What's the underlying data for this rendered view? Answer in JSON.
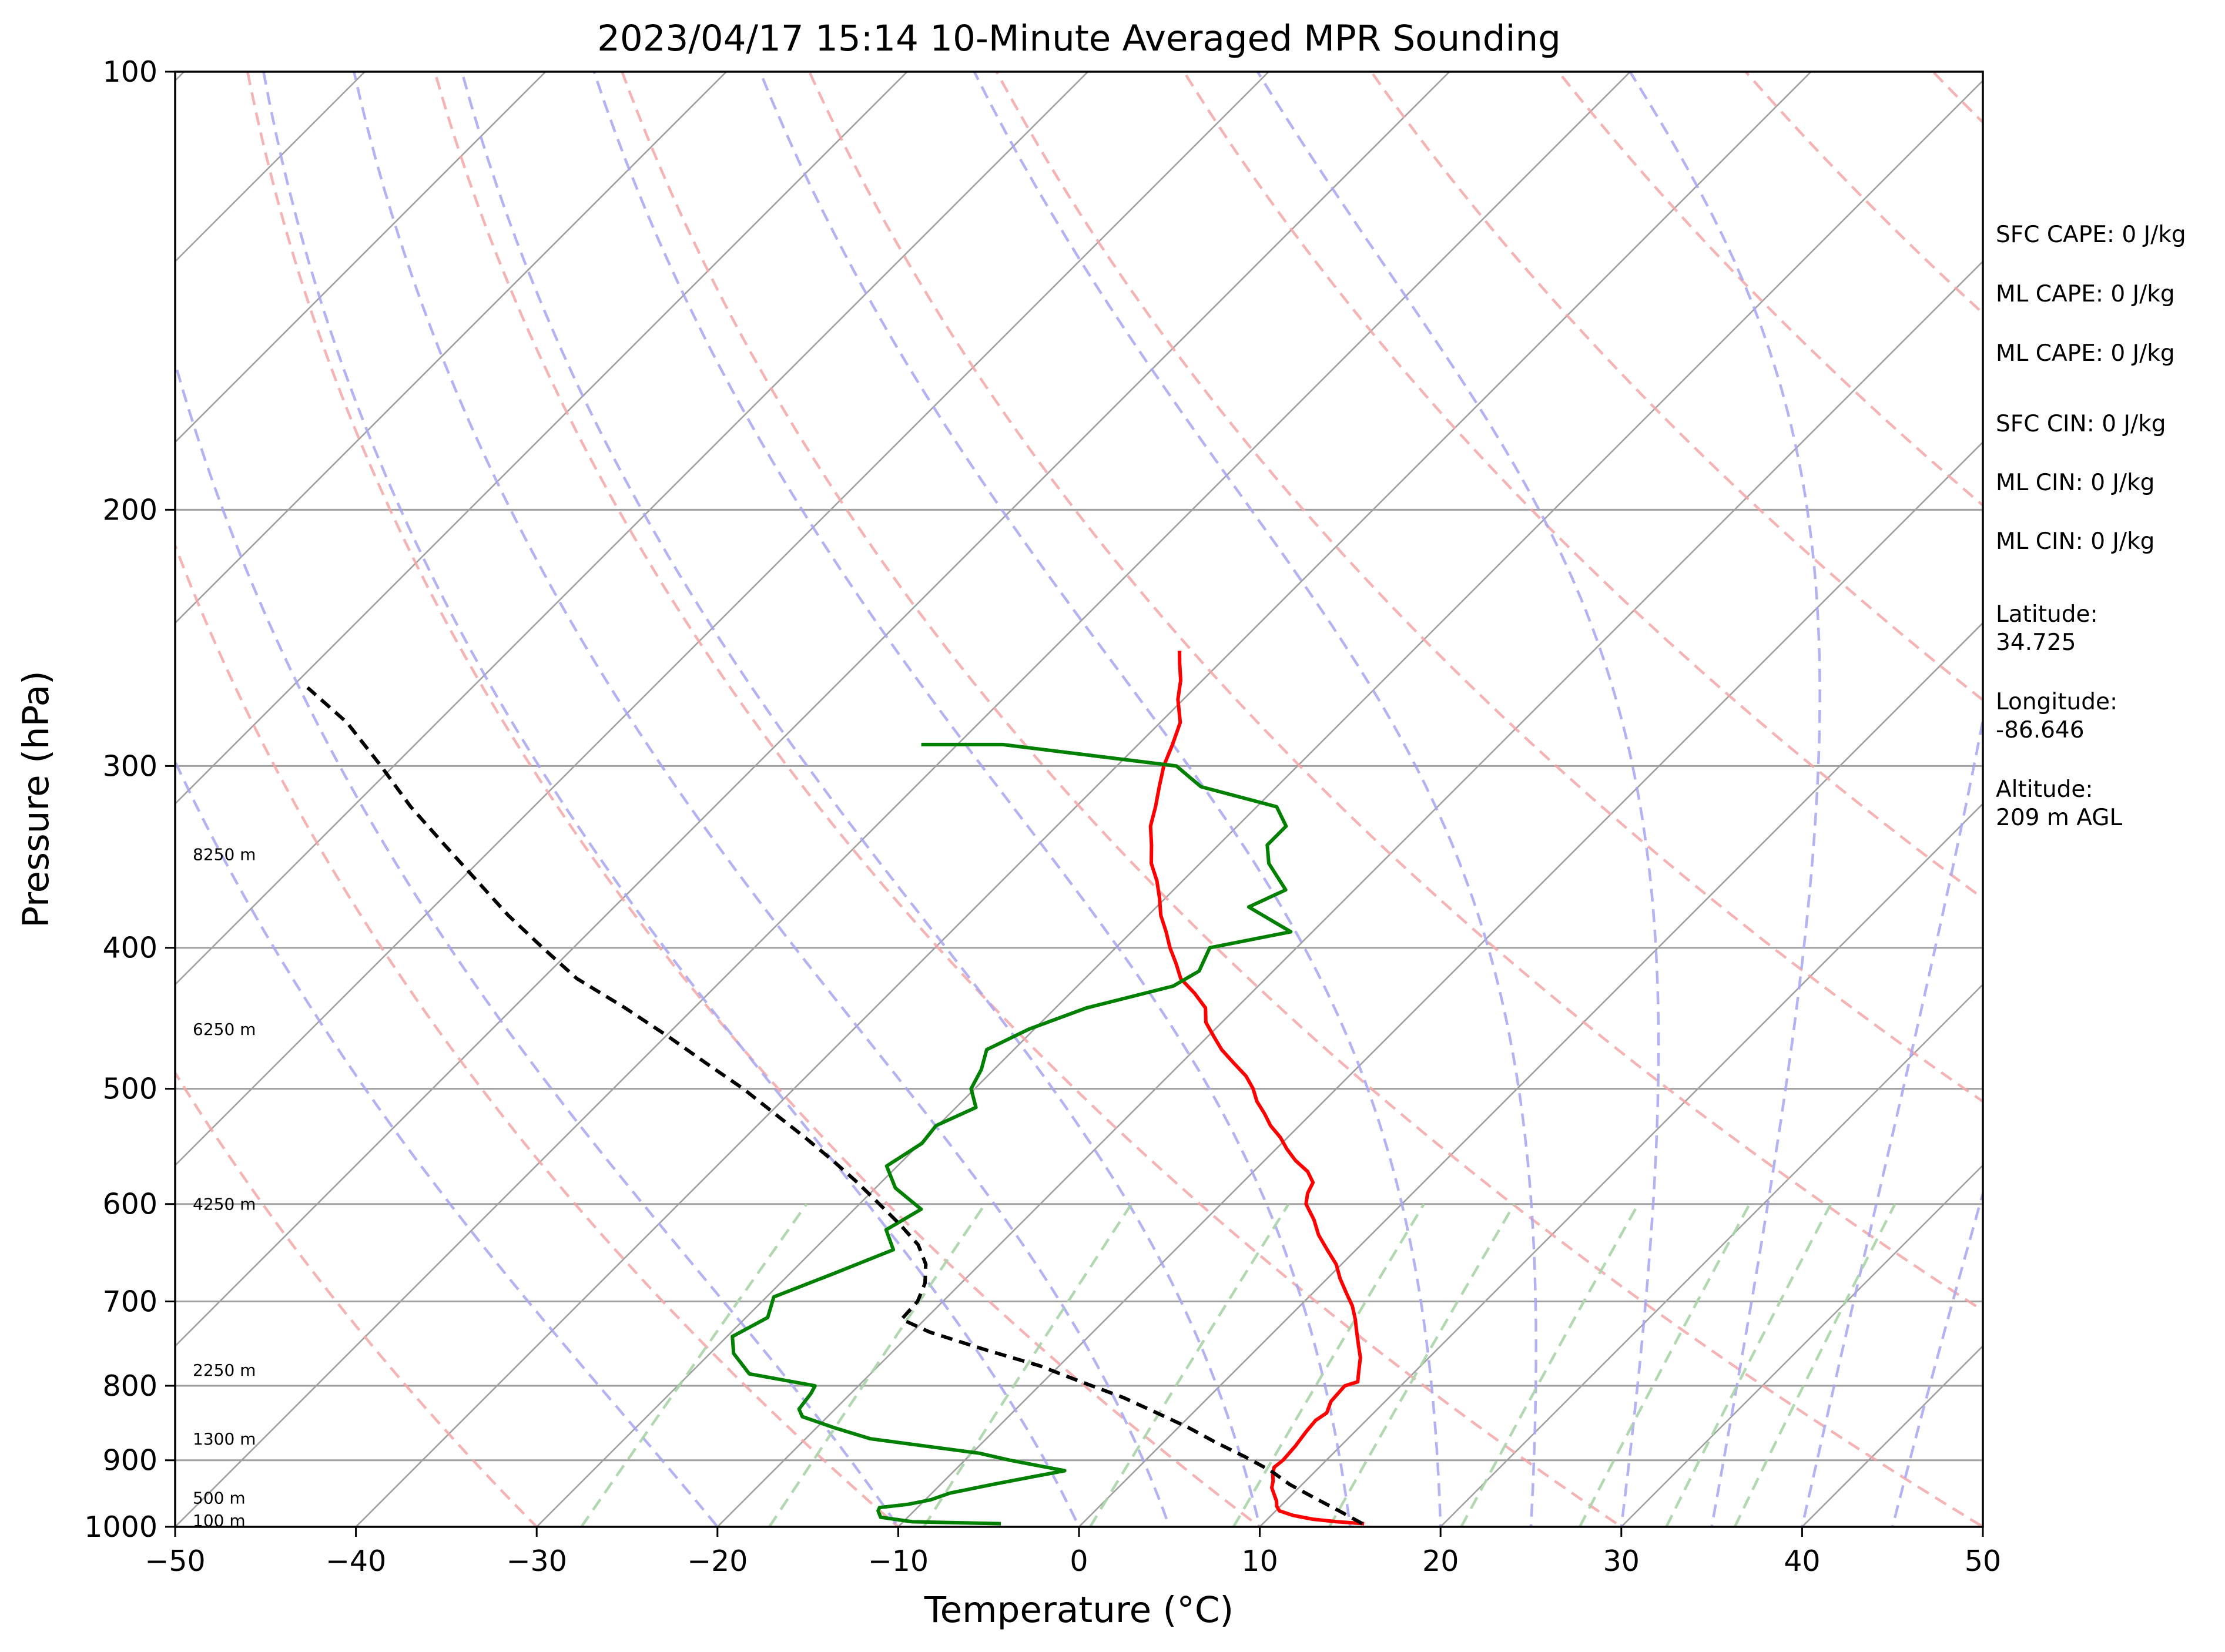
{
  "chart_data": {
    "type": "line",
    "title": "2023/04/17 15:14 10-Minute Averaged MPR Sounding",
    "xlabel": "Temperature (°C)",
    "ylabel": "Pressure (hPa)",
    "xlim": [
      -50,
      50
    ],
    "ylim": [
      1000,
      100
    ],
    "y_scale": "log",
    "x_ticks": [
      -50,
      -40,
      -30,
      -20,
      -10,
      0,
      10,
      20,
      30,
      40,
      50
    ],
    "x_tick_labels": [
      "−50",
      "−40",
      "−30",
      "−20",
      "−10",
      "0",
      "10",
      "20",
      "30",
      "40",
      "50"
    ],
    "y_ticks": [
      1000,
      900,
      800,
      700,
      600,
      500,
      400,
      300,
      200,
      100
    ],
    "y_tick_labels": [
      "1000",
      "900",
      "800",
      "700",
      "600",
      "500",
      "400",
      "300",
      "200",
      "100"
    ],
    "grid": true,
    "colors": {
      "temperature": "#ff0000",
      "dewpoint": "#008000",
      "parcel": "#000000",
      "isotherm": "#a0a0a0",
      "dry_adiabat": "#f4a6a6",
      "moist_adiabat": "#a6a6f2",
      "mixing_ratio": "#a8d4a8"
    },
    "series": [
      {
        "key": "temperature",
        "points": [
          [
            15.6,
            995
          ],
          [
            14,
            992
          ],
          [
            12.5,
            988
          ],
          [
            11.2,
            982
          ],
          [
            10.2,
            975
          ],
          [
            9.8,
            968
          ],
          [
            9.5,
            960
          ],
          [
            9.0,
            950
          ],
          [
            8.5,
            940
          ],
          [
            8.2,
            930
          ],
          [
            7.8,
            920
          ],
          [
            7.5,
            910
          ],
          [
            7.6,
            900
          ],
          [
            7.5,
            880
          ],
          [
            7.3,
            860
          ],
          [
            7.2,
            845
          ],
          [
            7.4,
            835
          ],
          [
            7.0,
            820
          ],
          [
            6.9,
            800
          ],
          [
            7.4,
            795
          ],
          [
            7.2,
            790
          ],
          [
            6.8,
            780
          ],
          [
            6.2,
            765
          ],
          [
            5.4,
            750
          ],
          [
            4.6,
            735
          ],
          [
            3.8,
            720
          ],
          [
            2.9,
            705
          ],
          [
            1.8,
            690
          ],
          [
            0.7,
            675
          ],
          [
            -0.3,
            660
          ],
          [
            -1.6,
            645
          ],
          [
            -2.9,
            630
          ],
          [
            -4.0,
            615
          ],
          [
            -5.3,
            600
          ],
          [
            -5.8,
            590
          ],
          [
            -6.1,
            580
          ],
          [
            -7.0,
            570
          ],
          [
            -8.3,
            560
          ],
          [
            -9.4,
            550
          ],
          [
            -10.4,
            540
          ],
          [
            -11.6,
            530
          ],
          [
            -12.6,
            520
          ],
          [
            -13.7,
            510
          ],
          [
            -14.6,
            500
          ],
          [
            -15.7,
            490
          ],
          [
            -17.1,
            480
          ],
          [
            -18.5,
            470
          ],
          [
            -19.7,
            460
          ],
          [
            -20.9,
            450
          ],
          [
            -21.7,
            440
          ],
          [
            -23.1,
            430
          ],
          [
            -24.7,
            420
          ],
          [
            -25.8,
            410
          ],
          [
            -27.0,
            400
          ],
          [
            -28.1,
            390
          ],
          [
            -29.3,
            380
          ],
          [
            -30.3,
            370
          ],
          [
            -31.4,
            360
          ],
          [
            -32.7,
            350
          ],
          [
            -33.7,
            340
          ],
          [
            -34.8,
            330
          ],
          [
            -35.6,
            320
          ],
          [
            -36.5,
            310
          ],
          [
            -37.4,
            300
          ],
          [
            -38.1,
            290
          ],
          [
            -38.9,
            280
          ],
          [
            -40.3,
            270
          ],
          [
            -41.2,
            262
          ],
          [
            -42.2,
            255
          ],
          [
            -42.9,
            250
          ]
        ]
      },
      {
        "key": "dewpoint",
        "points": [
          [
            -4.5,
            995
          ],
          [
            -9.5,
            992
          ],
          [
            -11.5,
            985
          ],
          [
            -12.0,
            975
          ],
          [
            -12.1,
            970
          ],
          [
            -10.7,
            965
          ],
          [
            -9.7,
            958
          ],
          [
            -9.0,
            948
          ],
          [
            -7.1,
            935
          ],
          [
            -3.9,
            915
          ],
          [
            -7.5,
            900
          ],
          [
            -9.6,
            890
          ],
          [
            -16.4,
            870
          ],
          [
            -19.0,
            855
          ],
          [
            -21.4,
            840
          ],
          [
            -22.0,
            830
          ],
          [
            -22.2,
            810
          ],
          [
            -22.4,
            800
          ],
          [
            -26.7,
            785
          ],
          [
            -28.7,
            760
          ],
          [
            -29.7,
            740
          ],
          [
            -28.8,
            718
          ],
          [
            -29.6,
            695
          ],
          [
            -27.6,
            670
          ],
          [
            -25.6,
            645
          ],
          [
            -27.1,
            625
          ],
          [
            -26.3,
            605
          ],
          [
            -28.9,
            585
          ],
          [
            -30.6,
            565
          ],
          [
            -29.9,
            545
          ],
          [
            -30.1,
            530
          ],
          [
            -28.9,
            515
          ],
          [
            -30.2,
            500
          ],
          [
            -30.7,
            485
          ],
          [
            -31.5,
            470
          ],
          [
            -30.3,
            455
          ],
          [
            -28.3,
            440
          ],
          [
            -24.7,
            425
          ],
          [
            -24.1,
            415
          ],
          [
            -24.8,
            400
          ],
          [
            -21.2,
            390
          ],
          [
            -24.9,
            375
          ],
          [
            -23.8,
            365
          ],
          [
            -26.2,
            350
          ],
          [
            -27.3,
            340
          ],
          [
            -27.3,
            330
          ],
          [
            -28.9,
            320
          ],
          [
            -34.2,
            310
          ],
          [
            -36.7,
            300
          ],
          [
            -47.5,
            290
          ],
          [
            -52.0,
            290
          ]
        ]
      },
      {
        "key": "parcel",
        "points": [
          [
            15.5,
            995
          ],
          [
            13.5,
            975
          ],
          [
            11.4,
            955
          ],
          [
            9.3,
            935
          ],
          [
            7.5,
            915
          ],
          [
            5.3,
            895
          ],
          [
            2.9,
            875
          ],
          [
            0.6,
            855
          ],
          [
            -2.0,
            835
          ],
          [
            -4.7,
            815
          ],
          [
            -7.9,
            795
          ],
          [
            -11.1,
            775
          ],
          [
            -15.1,
            755
          ],
          [
            -19.0,
            735
          ],
          [
            -21.3,
            720
          ],
          [
            -21.4,
            700
          ],
          [
            -22.0,
            680
          ],
          [
            -23.0,
            660
          ],
          [
            -24.5,
            640
          ],
          [
            -26.6,
            620
          ],
          [
            -28.9,
            600
          ],
          [
            -31.3,
            580
          ],
          [
            -33.9,
            560
          ],
          [
            -36.7,
            540
          ],
          [
            -39.7,
            520
          ],
          [
            -42.8,
            500
          ],
          [
            -46.3,
            480
          ],
          [
            -49.9,
            460
          ],
          [
            -53.8,
            440
          ],
          [
            -58.1,
            420
          ],
          [
            -61.7,
            400
          ],
          [
            -65.4,
            380
          ],
          [
            -69.0,
            360
          ],
          [
            -72.8,
            340
          ],
          [
            -76.8,
            320
          ],
          [
            -80.7,
            300
          ],
          [
            -85.0,
            280
          ],
          [
            -89.1,
            265
          ]
        ]
      }
    ],
    "isotherms": [
      -130,
      -120,
      -110,
      -100,
      -90,
      -80,
      -70,
      -60,
      -50,
      -40,
      -30,
      -20,
      -10,
      0,
      10,
      20,
      30,
      40,
      50
    ],
    "dry_adiabats": [
      -30,
      -10,
      10,
      30,
      50,
      70,
      90,
      110,
      130,
      150,
      170,
      190
    ],
    "moist_adiabats": [
      -20,
      -10,
      0,
      5,
      10,
      15,
      20,
      25,
      30,
      35,
      40,
      45
    ],
    "mixing_ratio_lines": [
      0.4,
      1,
      2,
      4,
      7,
      10,
      16,
      24,
      32,
      40
    ],
    "height_labels": [
      {
        "text": "100 m",
        "p": 990
      },
      {
        "text": "500 m",
        "p": 955
      },
      {
        "text": "1300 m",
        "p": 870
      },
      {
        "text": "2250 m",
        "p": 780
      },
      {
        "text": "4250 m",
        "p": 600
      },
      {
        "text": "6250 m",
        "p": 455
      },
      {
        "text": "8250 m",
        "p": 345
      }
    ]
  },
  "stats": [
    {
      "label": "SFC CAPE: 0 J/kg"
    },
    {
      "label": "ML CAPE: 0 J/kg"
    },
    {
      "label": "ML CAPE: 0 J/kg"
    },
    {
      "label": "SFC CIN: 0 J/kg"
    },
    {
      "label": "ML CIN: 0 J/kg"
    },
    {
      "label": "ML CIN: 0 J/kg"
    }
  ],
  "location": [
    {
      "line1": "Latitude:",
      "line2": "34.725"
    },
    {
      "line1": "Longitude:",
      "line2": "-86.646"
    },
    {
      "line1": "Altitude:",
      "line2": "209 m AGL"
    }
  ]
}
